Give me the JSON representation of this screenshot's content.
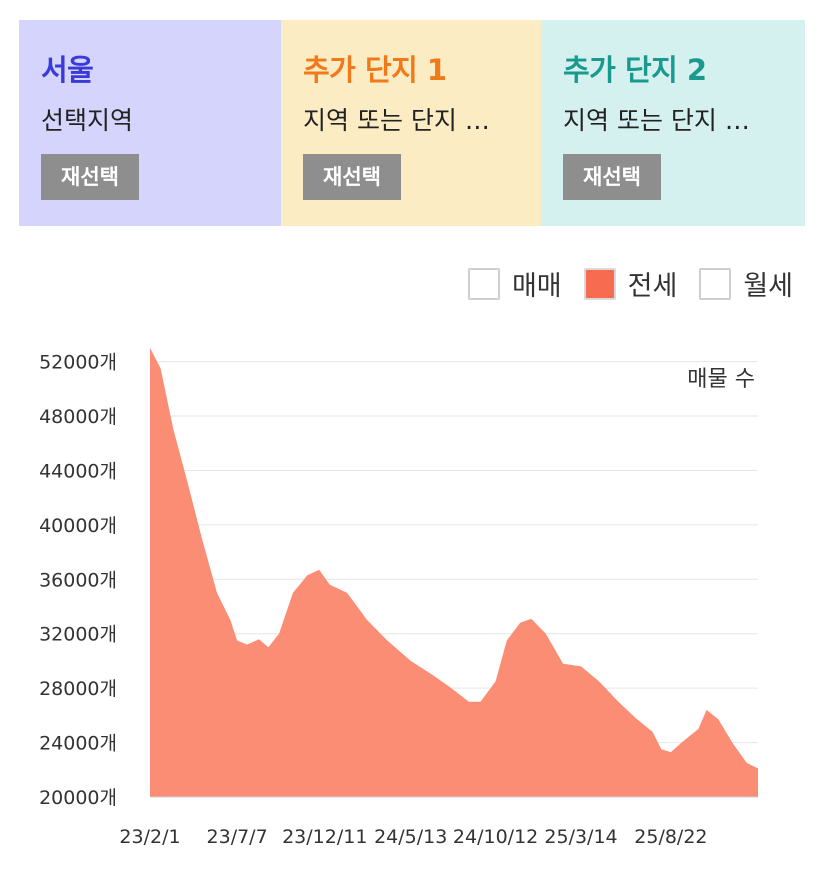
{
  "colors": {
    "region0": "#3a3ad8",
    "region1": "#f07a1a",
    "region2": "#1a9a8e",
    "series_fill": "#fa8d74",
    "series_check": "#f76b50"
  },
  "panels": [
    {
      "title": "서울",
      "subtitle": "선택지역",
      "button": "재선택"
    },
    {
      "title": "추가 단지 1",
      "subtitle": "지역 또는 단지 …",
      "button": "재선택"
    },
    {
      "title": "추가 단지 2",
      "subtitle": "지역 또는 단지 …",
      "button": "재선택"
    }
  ],
  "legend": [
    {
      "label": "매매",
      "checked": false
    },
    {
      "label": "전세",
      "checked": true
    },
    {
      "label": "월세",
      "checked": false
    }
  ],
  "chart_data": {
    "type": "area",
    "ylabel": "매물 수",
    "y_unit_suffix": "개",
    "ylim": [
      20000,
      53000
    ],
    "yticks": [
      20000,
      24000,
      28000,
      32000,
      36000,
      40000,
      44000,
      48000,
      52000
    ],
    "grid": true,
    "xtick_labels": [
      "23/2/1",
      "23/7/7",
      "23/12/11",
      "24/5/13",
      "24/10/12",
      "25/3/14",
      "25/8/22"
    ],
    "series": [
      {
        "points": [
          [
            "23/2/1",
            53000
          ],
          [
            "23/2/20",
            51500
          ],
          [
            "23/3/15",
            47000
          ],
          [
            "23/4/10",
            43000
          ],
          [
            "23/5/5",
            39000
          ],
          [
            "23/6/1",
            35000
          ],
          [
            "23/6/25",
            33000
          ],
          [
            "23/7/7",
            31500
          ],
          [
            "23/7/25",
            31200
          ],
          [
            "23/8/15",
            31600
          ],
          [
            "23/9/1",
            31000
          ],
          [
            "23/9/20",
            32000
          ],
          [
            "23/10/15",
            35000
          ],
          [
            "23/11/10",
            36300
          ],
          [
            "23/12/1",
            36700
          ],
          [
            "23/12/20",
            35600
          ],
          [
            "24/1/20",
            35000
          ],
          [
            "24/2/25",
            33000
          ],
          [
            "24/4/1",
            31500
          ],
          [
            "24/5/13",
            30000
          ],
          [
            "24/6/20",
            29000
          ],
          [
            "24/7/25",
            28000
          ],
          [
            "24/8/25",
            27000
          ],
          [
            "24/9/15",
            27000
          ],
          [
            "24/10/12",
            28500
          ],
          [
            "24/11/1",
            31500
          ],
          [
            "24/11/25",
            32800
          ],
          [
            "24/12/15",
            33100
          ],
          [
            "25/1/10",
            32000
          ],
          [
            "25/2/10",
            29800
          ],
          [
            "25/3/14",
            29600
          ],
          [
            "25/4/15",
            28500
          ],
          [
            "25/5/20",
            27000
          ],
          [
            "25/6/20",
            25800
          ],
          [
            "25/7/20",
            24800
          ],
          [
            "25/8/5",
            23500
          ],
          [
            "25/8/22",
            23300
          ],
          [
            "25/9/10",
            24000
          ],
          [
            "25/10/10",
            25000
          ],
          [
            "25/10/25",
            26400
          ],
          [
            "25/11/15",
            25700
          ],
          [
            "25/12/10",
            24000
          ],
          [
            "26/1/5",
            22500
          ],
          [
            "26/1/25",
            22100
          ]
        ]
      }
    ]
  }
}
